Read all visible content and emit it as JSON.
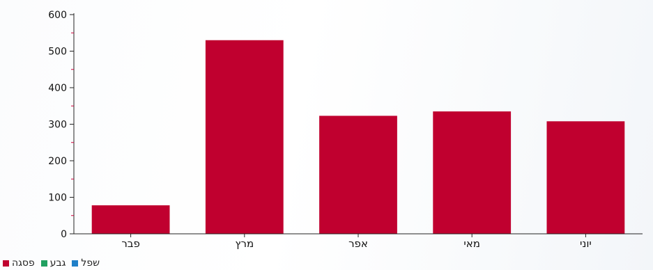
{
  "chart_data": {
    "type": "bar",
    "categories": [
      "פבר",
      "מרץ",
      "אפר",
      "מאי",
      "יוני"
    ],
    "series": [
      {
        "name": "פסגה",
        "color": "#c0002f",
        "values": [
          78,
          530,
          323,
          335,
          308
        ]
      }
    ],
    "ylim": [
      0,
      600
    ],
    "yticks": [
      0,
      100,
      200,
      300,
      400,
      500,
      600
    ],
    "grid": false,
    "legend_position": "bottom-left",
    "legend": [
      {
        "label": "פסגה",
        "color": "#c0002f"
      },
      {
        "label": "גבע",
        "color": "#20a060"
      },
      {
        "label": "שפל",
        "color": "#1f7fc8"
      }
    ]
  }
}
